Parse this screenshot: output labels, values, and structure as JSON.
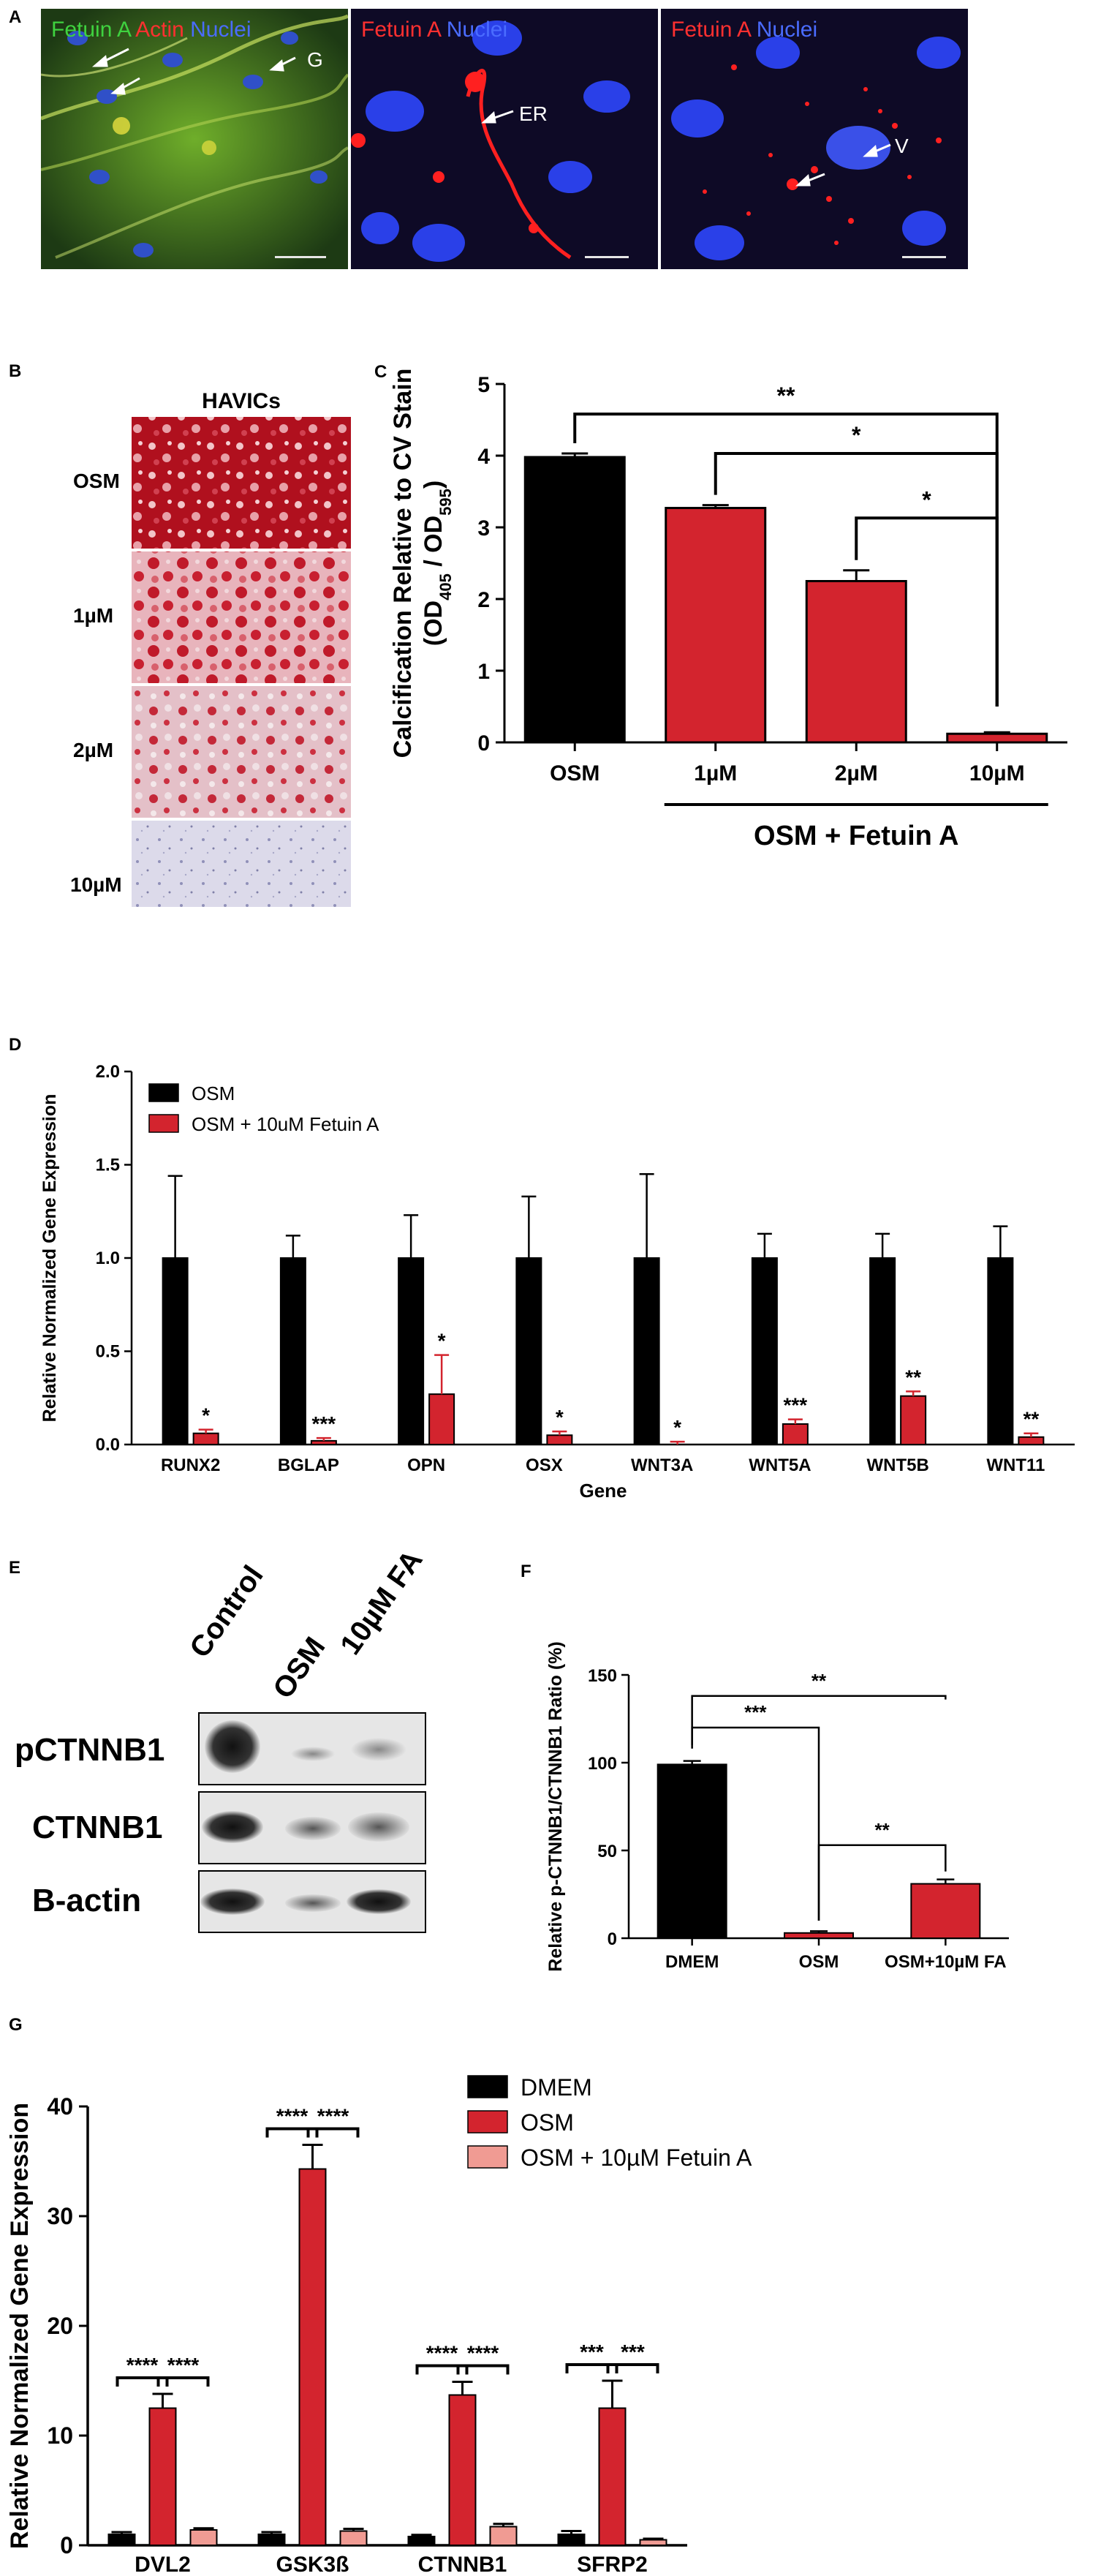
{
  "panel_a": {
    "label": "A",
    "images": [
      {
        "title_parts": [
          {
            "text": "Fetuin A",
            "color": "#3fd23f"
          },
          {
            "text": " Actin",
            "color": "#ff3030"
          },
          {
            "text": " Nuclei",
            "color": "#4a6cff"
          }
        ],
        "arrow_label": "G"
      },
      {
        "title_parts": [
          {
            "text": "Fetuin A",
            "color": "#ff3030"
          },
          {
            "text": " Nuclei",
            "color": "#4a6cff"
          }
        ],
        "arrow_label": "ER"
      },
      {
        "title_parts": [
          {
            "text": "Fetuin A",
            "color": "#ff3030"
          },
          {
            "text": " Nuclei",
            "color": "#4a6cff"
          }
        ],
        "arrow_label": "V"
      }
    ]
  },
  "panel_b": {
    "label": "B",
    "column_title": "HAVICs",
    "rows": [
      "OSM",
      "1µM",
      "2µM",
      "10µM"
    ]
  },
  "panel_e": {
    "label": "E",
    "lanes": [
      "Control",
      "OSM",
      "10µM FA"
    ],
    "blots": [
      "pCTNNB1",
      "CTNNB1",
      "B-actin"
    ]
  },
  "chart_data": [
    {
      "panel_label": "C",
      "type": "bar",
      "categories": [
        "OSM",
        "1µM",
        "2µM",
        "10µM"
      ],
      "values": [
        3.98,
        3.27,
        2.25,
        0.12
      ],
      "errors": [
        0.05,
        0.04,
        0.15,
        0.02
      ],
      "bar_colors": [
        "#000000",
        "#d3242e",
        "#d3242e",
        "#d3242e"
      ],
      "ylabel_main": "Calcification Relative to CV Stain",
      "ylabel_sub_parts": [
        "(OD",
        "405",
        " / OD",
        "595",
        ")"
      ],
      "yticks": [
        0,
        1,
        2,
        3,
        4,
        5
      ],
      "ylim": [
        0,
        5
      ],
      "group_label": "OSM + Fetuin A",
      "significance": [
        {
          "from": 0,
          "to": 3,
          "label": "**"
        },
        {
          "from": 1,
          "to": 3,
          "label": "*"
        },
        {
          "from": 2,
          "to": 3,
          "label": "*"
        }
      ]
    },
    {
      "panel_label": "D",
      "type": "bar",
      "categories": [
        "RUNX2",
        "BGLAP",
        "OPN",
        "OSX",
        "WNT3A",
        "WNT5A",
        "WNT5B",
        "WNT11"
      ],
      "series": [
        {
          "name": "OSM",
          "color": "#000000",
          "values": [
            1,
            1,
            1,
            1,
            1,
            1,
            1,
            1
          ],
          "errors": [
            0.44,
            0.12,
            0.23,
            0.33,
            0.45,
            0.13,
            0.13,
            0.17
          ]
        },
        {
          "name": "OSM + 10uM Fetuin A",
          "color": "#d3242e",
          "values": [
            0.06,
            0.02,
            0.27,
            0.05,
            0.0,
            0.11,
            0.26,
            0.04
          ],
          "errors": [
            0.02,
            0.015,
            0.21,
            0.02,
            0.015,
            0.025,
            0.025,
            0.02
          ]
        }
      ],
      "stars": [
        "*",
        "***",
        "*",
        "*",
        "*",
        "***",
        "**",
        "**"
      ],
      "xlabel": "Gene",
      "ylabel": "Relative Normalized Gene Expression",
      "yticks": [
        "0.0",
        "0.5",
        "1.0",
        "1.5",
        "2.0"
      ],
      "ylim": [
        0,
        2
      ],
      "legend_position": "top-left"
    },
    {
      "panel_label": "F",
      "type": "bar",
      "categories": [
        "DMEM",
        "OSM",
        "OSM+10µM FA"
      ],
      "values": [
        99,
        3,
        31
      ],
      "errors": [
        2,
        1,
        2.5
      ],
      "bar_colors": [
        "#000000",
        "#d3242e",
        "#d3242e"
      ],
      "ylabel": "Relative p-CTNNB1/CTNNB1 Ratio (%)",
      "yticks": [
        0,
        50,
        100,
        150
      ],
      "ylim": [
        0,
        150
      ],
      "significance": [
        {
          "from": 0,
          "to": 2,
          "label": "**"
        },
        {
          "from": 0,
          "to": 1,
          "label": "***"
        },
        {
          "from": 1,
          "to": 2,
          "label": "**"
        }
      ]
    },
    {
      "panel_label": "G",
      "type": "bar",
      "categories": [
        "DVL2",
        "GSK3ß",
        "CTNNB1",
        "SFRP2"
      ],
      "series": [
        {
          "name": "DMEM",
          "color": "#000000",
          "values": [
            1,
            1,
            0.8,
            1
          ],
          "errors": [
            0.2,
            0.2,
            0.15,
            0.3
          ]
        },
        {
          "name": "OSM",
          "color": "#d3242e",
          "values": [
            12.5,
            34.3,
            13.7,
            12.5
          ],
          "errors": [
            1.3,
            2.2,
            1.2,
            2.5
          ]
        },
        {
          "name": "OSM + 10µM Fetuin A",
          "color": "#f09b93",
          "values": [
            1.4,
            1.3,
            1.7,
            0.5
          ],
          "errors": [
            0.15,
            0.2,
            0.25,
            0.1
          ]
        }
      ],
      "significance": [
        {
          "group": 0,
          "a": 0,
          "b": 1,
          "label": "****"
        },
        {
          "group": 0,
          "a": 1,
          "b": 2,
          "label": "****"
        },
        {
          "group": 1,
          "a": 0,
          "b": 1,
          "label": "****"
        },
        {
          "group": 1,
          "a": 1,
          "b": 2,
          "label": "****"
        },
        {
          "group": 2,
          "a": 0,
          "b": 1,
          "label": "****"
        },
        {
          "group": 2,
          "a": 1,
          "b": 2,
          "label": "****"
        },
        {
          "group": 3,
          "a": 0,
          "b": 1,
          "label": "***"
        },
        {
          "group": 3,
          "a": 1,
          "b": 2,
          "label": "***"
        }
      ],
      "ylabel": "Relative Normalized  Gene Expression",
      "yticks": [
        0,
        10,
        20,
        30,
        40
      ],
      "ylim": [
        0,
        40
      ],
      "legend_position": "top-right"
    }
  ]
}
